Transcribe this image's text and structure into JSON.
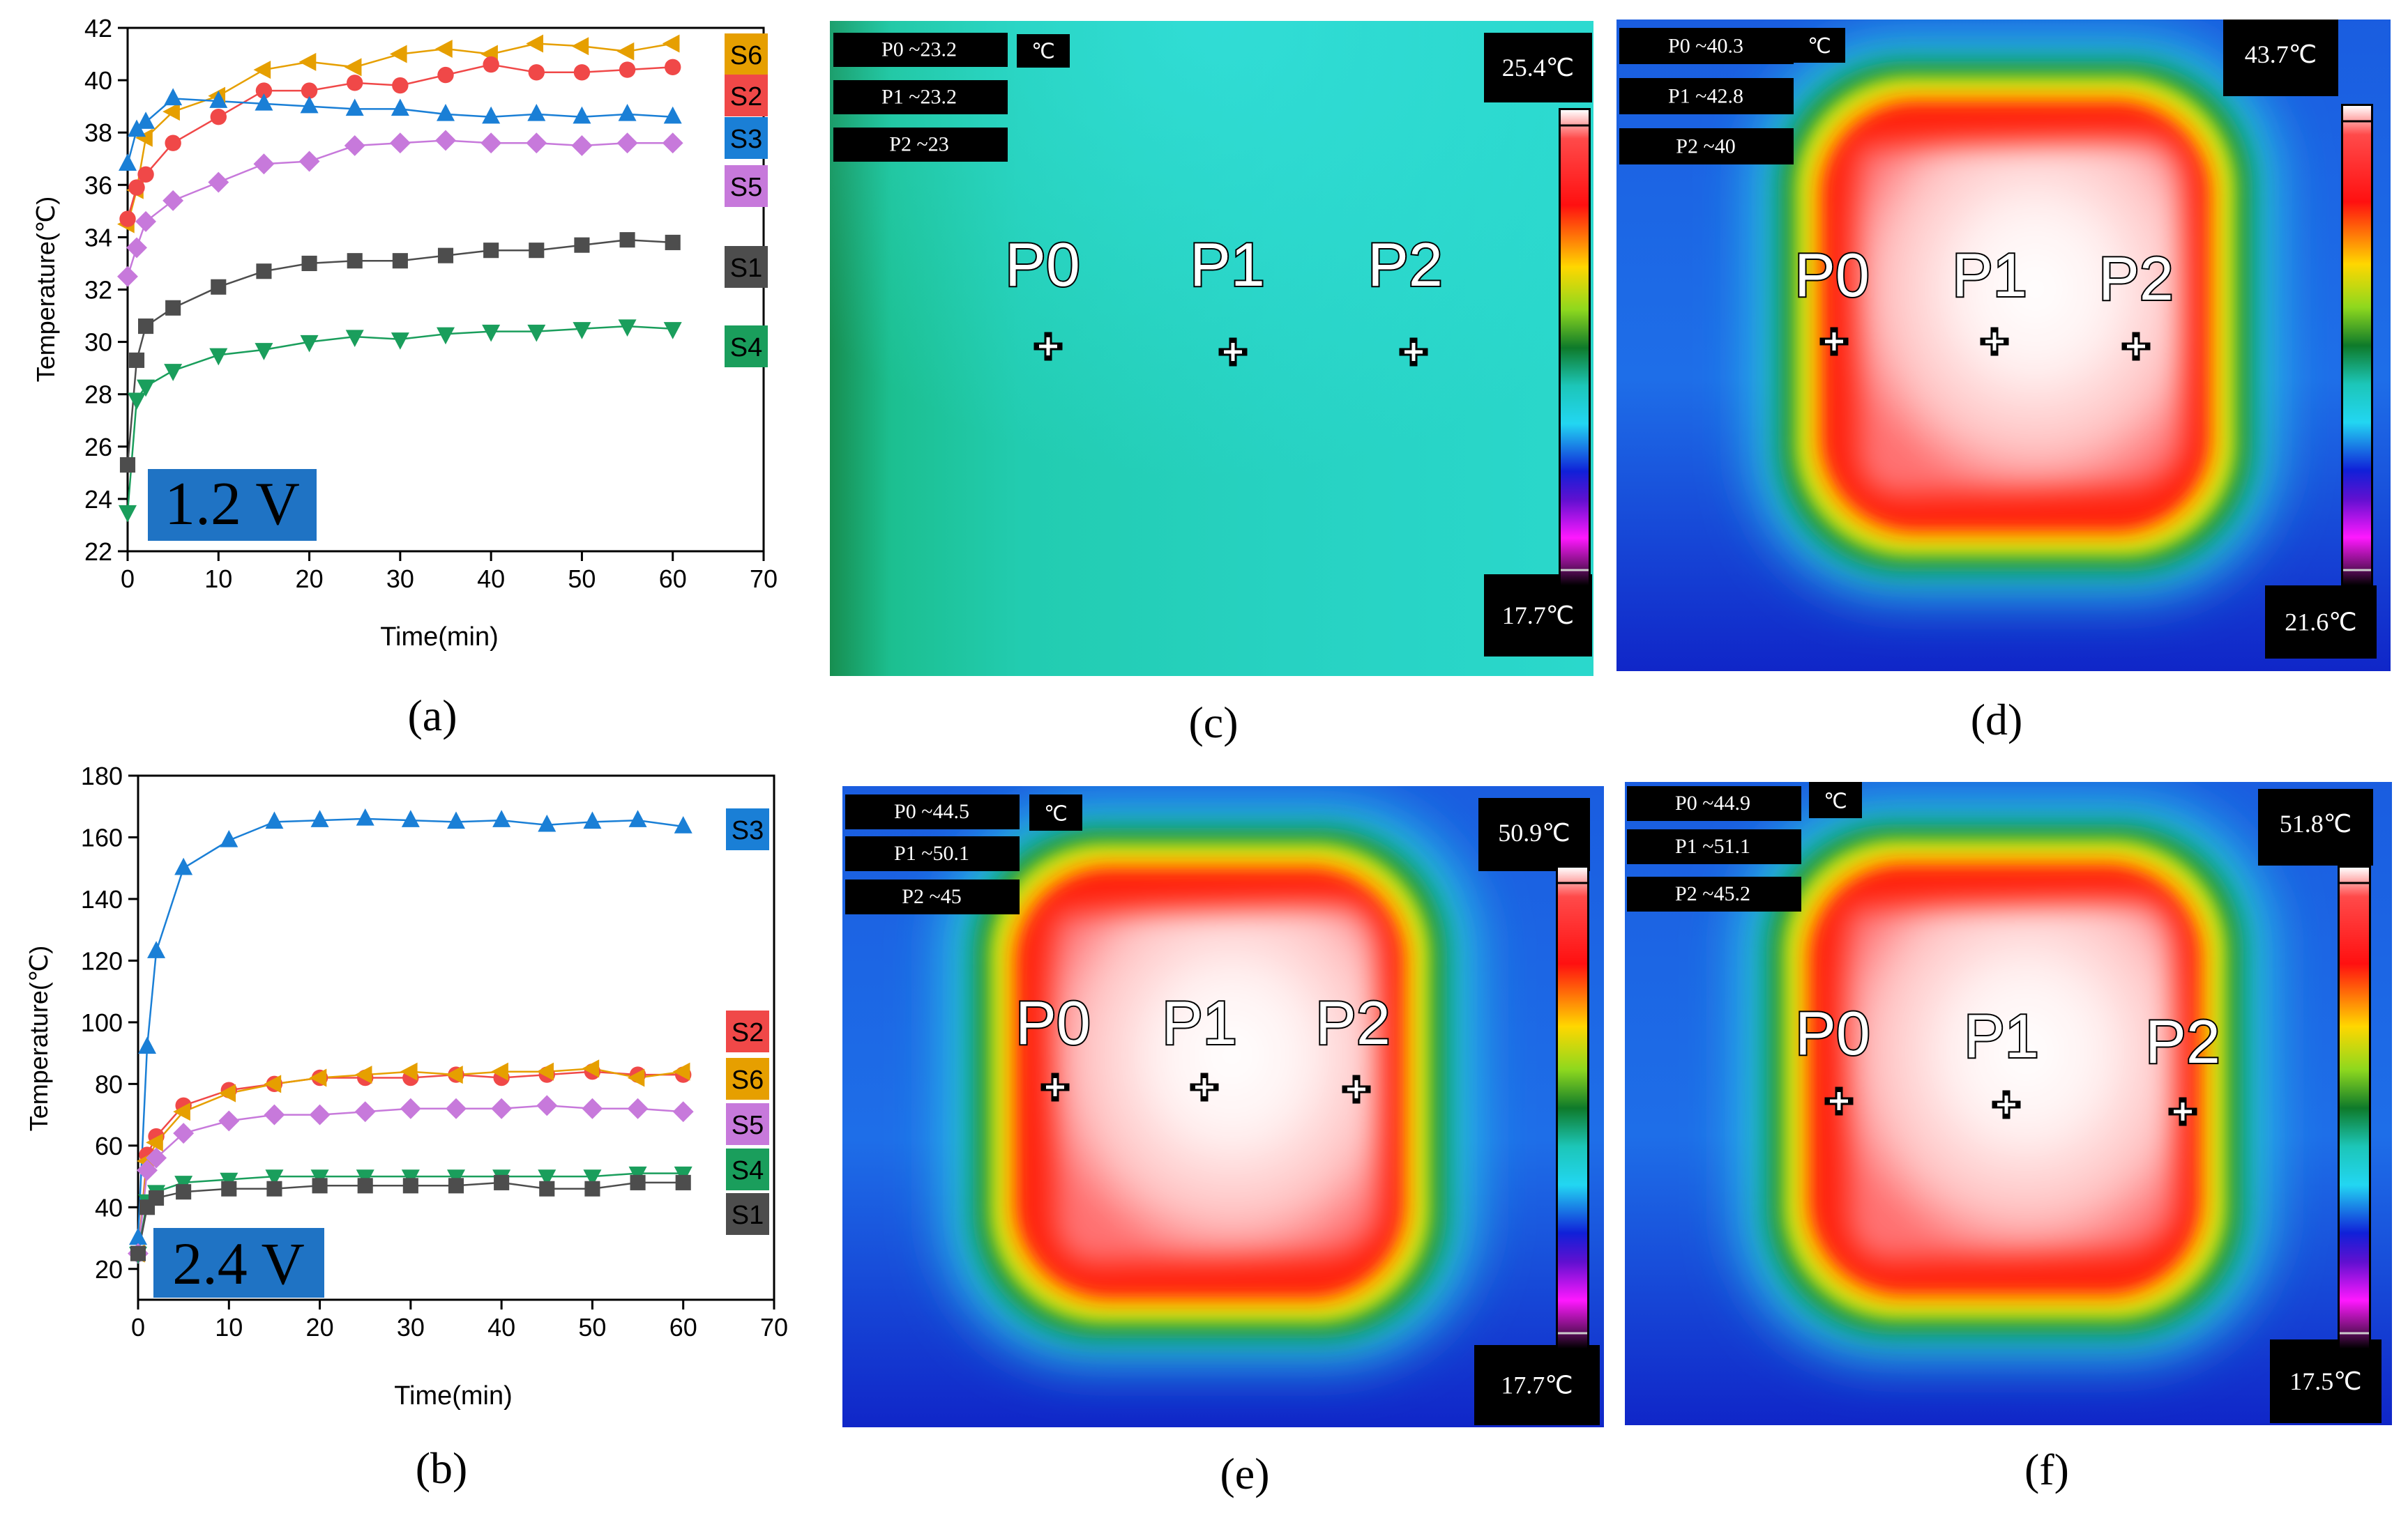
{
  "panel_labels": {
    "a": "(a)",
    "b": "(b)",
    "c": "(c)",
    "d": "(d)",
    "e": "(e)",
    "f": "(f)"
  },
  "chart_data": [
    {
      "id": "a",
      "type": "scatter",
      "title": "",
      "badge": "1.2 V",
      "xlabel": "Time(min)",
      "ylabel": "Temperature(℃)",
      "xlim": [
        0,
        70
      ],
      "ylim": [
        22,
        42
      ],
      "xticks": [
        0,
        10,
        20,
        30,
        40,
        50,
        60,
        70
      ],
      "yticks": [
        22,
        24,
        26,
        28,
        30,
        32,
        34,
        36,
        38,
        40,
        42
      ],
      "x": [
        0,
        1,
        2,
        5,
        10,
        15,
        20,
        25,
        30,
        35,
        40,
        45,
        50,
        55,
        60
      ],
      "series": [
        {
          "name": "S6",
          "color": "#e69f00",
          "marker": "tri-left",
          "values": [
            34.5,
            35.8,
            37.8,
            38.8,
            39.4,
            40.4,
            40.7,
            40.5,
            41.0,
            41.2,
            41.0,
            41.4,
            41.3,
            41.1,
            41.4
          ]
        },
        {
          "name": "S2",
          "color": "#f04848",
          "marker": "circle",
          "values": [
            34.7,
            35.9,
            36.4,
            37.6,
            38.6,
            39.6,
            39.6,
            39.9,
            39.8,
            40.2,
            40.6,
            40.3,
            40.3,
            40.4,
            40.5
          ]
        },
        {
          "name": "S3",
          "color": "#1a7fd6",
          "marker": "tri-up",
          "values": [
            36.8,
            38.1,
            38.4,
            39.3,
            39.2,
            39.1,
            39.0,
            38.9,
            38.9,
            38.7,
            38.6,
            38.7,
            38.6,
            38.7,
            38.6
          ]
        },
        {
          "name": "S5",
          "color": "#c779db",
          "marker": "diamond",
          "values": [
            32.5,
            33.6,
            34.6,
            35.4,
            36.1,
            36.8,
            36.9,
            37.5,
            37.6,
            37.7,
            37.6,
            37.6,
            37.5,
            37.6,
            37.6
          ]
        },
        {
          "name": "S1",
          "color": "#4d4d4d",
          "marker": "square",
          "values": [
            25.3,
            29.3,
            30.6,
            31.3,
            32.1,
            32.7,
            33.0,
            33.1,
            33.1,
            33.3,
            33.5,
            33.5,
            33.7,
            33.9,
            33.8
          ]
        },
        {
          "name": "S4",
          "color": "#1a9e5c",
          "marker": "tri-down",
          "values": [
            23.5,
            27.8,
            28.3,
            28.9,
            29.5,
            29.7,
            30.0,
            30.2,
            30.1,
            30.3,
            30.4,
            30.4,
            30.5,
            30.6,
            30.5
          ]
        }
      ],
      "legend": [
        "S6",
        "S2",
        "S3",
        "S5",
        "S1",
        "S4"
      ]
    },
    {
      "id": "b",
      "type": "scatter",
      "title": "",
      "badge": "2.4 V",
      "xlabel": "Time(min)",
      "ylabel": "Temperature(℃)",
      "xlim": [
        0,
        70
      ],
      "ylim": [
        10,
        180
      ],
      "xticks": [
        0,
        10,
        20,
        30,
        40,
        50,
        60,
        70
      ],
      "yticks": [
        20,
        40,
        60,
        80,
        100,
        120,
        140,
        160,
        180
      ],
      "x": [
        0,
        1,
        2,
        5,
        10,
        15,
        20,
        25,
        30,
        35,
        40,
        45,
        50,
        55,
        60
      ],
      "series": [
        {
          "name": "S3",
          "color": "#1a7fd6",
          "marker": "tri-up",
          "values": [
            30,
            92,
            123,
            150,
            159,
            165,
            165.5,
            166,
            165.5,
            165,
            165.5,
            164,
            165,
            165.5,
            163.5
          ]
        },
        {
          "name": "S2",
          "color": "#f04848",
          "marker": "circle",
          "values": [
            25,
            57,
            63,
            73,
            78,
            80,
            82,
            82,
            82,
            83,
            82,
            83,
            84,
            83,
            83
          ]
        },
        {
          "name": "S6",
          "color": "#e69f00",
          "marker": "tri-left",
          "values": [
            25,
            55,
            61,
            71,
            77,
            80,
            82,
            83,
            84,
            83,
            84,
            84,
            85,
            82,
            84
          ]
        },
        {
          "name": "S5",
          "color": "#c779db",
          "marker": "diamond",
          "values": [
            25,
            52,
            56,
            64,
            68,
            70,
            70,
            71,
            72,
            72,
            72,
            73,
            72,
            72,
            71
          ]
        },
        {
          "name": "S4",
          "color": "#1a9e5c",
          "marker": "tri-down",
          "values": [
            25,
            42,
            45,
            48,
            49,
            50,
            50,
            50,
            50,
            50,
            50,
            50,
            50,
            51,
            51
          ]
        },
        {
          "name": "S1",
          "color": "#4d4d4d",
          "marker": "square",
          "values": [
            25,
            40,
            43,
            45,
            46,
            46,
            47,
            47,
            47,
            47,
            48,
            46,
            46,
            48,
            48
          ]
        }
      ],
      "legend": [
        "S3",
        "S2",
        "S6",
        "S5",
        "S4",
        "S1"
      ]
    }
  ],
  "thermal_images": [
    {
      "id": "c",
      "heated": false,
      "readouts": [
        "P0 ~23.2",
        "P1 ~23.2",
        "P2 ~23"
      ],
      "unit": "℃",
      "max": "25.4℃",
      "min": "17.7℃",
      "points": [
        "P0",
        "P1",
        "P2"
      ]
    },
    {
      "id": "d",
      "heated": true,
      "readouts": [
        "P0 ~40.3",
        "P1 ~42.8",
        "P2 ~40"
      ],
      "unit": "℃",
      "max": "43.7℃",
      "min": "21.6℃",
      "points": [
        "P0",
        "P1",
        "P2"
      ]
    },
    {
      "id": "e",
      "heated": true,
      "readouts": [
        "P0 ~44.5",
        "P1 ~50.1",
        "P2 ~45"
      ],
      "unit": "℃",
      "max": "50.9℃",
      "min": "17.7℃",
      "points": [
        "P0",
        "P1",
        "P2"
      ]
    },
    {
      "id": "f",
      "heated": true,
      "readouts": [
        "P0 ~44.9",
        "P1 ~51.1",
        "P2 ~45.2"
      ],
      "unit": "℃",
      "max": "51.8℃",
      "min": "17.5℃",
      "points": [
        "P0",
        "P1",
        "P2"
      ]
    }
  ]
}
